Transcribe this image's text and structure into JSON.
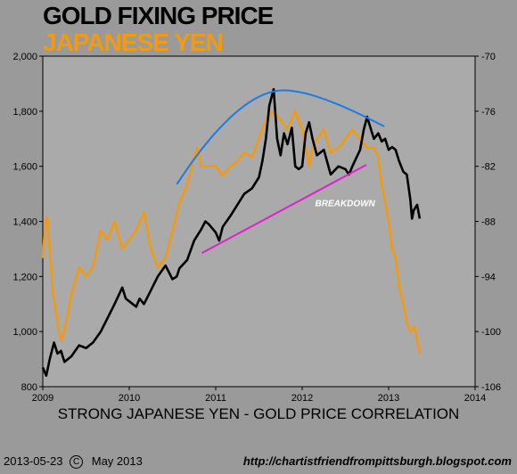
{
  "title": "GOLD FIXING PRICE",
  "subtitle": "JAPANESE YEN",
  "caption": "STRONG JAPANESE YEN - GOLD PRICE CORRELATION",
  "footer": {
    "date": "2013-05-23",
    "copyright_symbol": "C",
    "period": "May 2013",
    "url": "http://chartistfriendfrompittsburgh.blogspot.com"
  },
  "colors": {
    "background": "#9a9a9a",
    "plot_background": "#aaaaaa",
    "gold": "#000000",
    "yen": "#f29a11",
    "dome": "#1e7be3",
    "trendline": "#e020d0",
    "title": "#000000",
    "subtitle": "#f29a11"
  },
  "chart_data": {
    "type": "line",
    "x_axis": {
      "min": 2009,
      "max": 2014,
      "ticks": [
        2009,
        2010,
        2011,
        2012,
        2013,
        2014
      ]
    },
    "y_left": {
      "min": 800,
      "max": 2000,
      "ticks": [
        800,
        1000,
        1200,
        1400,
        1600,
        1800,
        2000
      ],
      "tick_labels": [
        "800",
        "1,000",
        "1,200",
        "1,400",
        "1,600",
        "1,800",
        "2,000"
      ]
    },
    "y_right": {
      "min": -106,
      "max": -70,
      "ticks": [
        -106,
        -100,
        -94,
        -88,
        -82,
        -76,
        -70
      ],
      "tick_labels": [
        "-106",
        "-100",
        "-94",
        "-88",
        "-82",
        "-76",
        "-70"
      ]
    },
    "grid": false,
    "series": [
      {
        "axis": "left",
        "color_key": "gold",
        "points": [
          [
            2009.0,
            870
          ],
          [
            2009.04,
            840
          ],
          [
            2009.08,
            900
          ],
          [
            2009.13,
            960
          ],
          [
            2009.17,
            920
          ],
          [
            2009.21,
            930
          ],
          [
            2009.25,
            890
          ],
          [
            2009.33,
            910
          ],
          [
            2009.42,
            950
          ],
          [
            2009.5,
            940
          ],
          [
            2009.58,
            960
          ],
          [
            2009.67,
            1000
          ],
          [
            2009.75,
            1050
          ],
          [
            2009.83,
            1100
          ],
          [
            2009.92,
            1160
          ],
          [
            2009.96,
            1120
          ],
          [
            2010.0,
            1110
          ],
          [
            2010.08,
            1090
          ],
          [
            2010.12,
            1120
          ],
          [
            2010.17,
            1100
          ],
          [
            2010.25,
            1150
          ],
          [
            2010.33,
            1200
          ],
          [
            2010.42,
            1240
          ],
          [
            2010.5,
            1190
          ],
          [
            2010.55,
            1200
          ],
          [
            2010.58,
            1230
          ],
          [
            2010.67,
            1260
          ],
          [
            2010.75,
            1330
          ],
          [
            2010.83,
            1370
          ],
          [
            2010.88,
            1400
          ],
          [
            2010.92,
            1390
          ],
          [
            2011.0,
            1360
          ],
          [
            2011.04,
            1330
          ],
          [
            2011.08,
            1380
          ],
          [
            2011.17,
            1420
          ],
          [
            2011.25,
            1460
          ],
          [
            2011.33,
            1500
          ],
          [
            2011.42,
            1520
          ],
          [
            2011.5,
            1560
          ],
          [
            2011.54,
            1620
          ],
          [
            2011.58,
            1700
          ],
          [
            2011.62,
            1820
          ],
          [
            2011.67,
            1880
          ],
          [
            2011.71,
            1700
          ],
          [
            2011.75,
            1640
          ],
          [
            2011.79,
            1720
          ],
          [
            2011.83,
            1680
          ],
          [
            2011.88,
            1740
          ],
          [
            2011.92,
            1600
          ],
          [
            2011.96,
            1590
          ],
          [
            2012.0,
            1600
          ],
          [
            2012.04,
            1720
          ],
          [
            2012.08,
            1760
          ],
          [
            2012.12,
            1700
          ],
          [
            2012.17,
            1640
          ],
          [
            2012.25,
            1660
          ],
          [
            2012.33,
            1570
          ],
          [
            2012.42,
            1600
          ],
          [
            2012.5,
            1590
          ],
          [
            2012.54,
            1570
          ],
          [
            2012.58,
            1600
          ],
          [
            2012.67,
            1660
          ],
          [
            2012.71,
            1730
          ],
          [
            2012.75,
            1780
          ],
          [
            2012.79,
            1740
          ],
          [
            2012.83,
            1700
          ],
          [
            2012.88,
            1720
          ],
          [
            2012.92,
            1690
          ],
          [
            2012.96,
            1700
          ],
          [
            2013.0,
            1660
          ],
          [
            2013.04,
            1670
          ],
          [
            2013.08,
            1660
          ],
          [
            2013.12,
            1620
          ],
          [
            2013.17,
            1580
          ],
          [
            2013.21,
            1570
          ],
          [
            2013.25,
            1480
          ],
          [
            2013.27,
            1410
          ],
          [
            2013.29,
            1440
          ],
          [
            2013.33,
            1460
          ],
          [
            2013.36,
            1410
          ]
        ]
      },
      {
        "axis": "right",
        "color_key": "yen",
        "points": [
          [
            2009.0,
            -92
          ],
          [
            2009.03,
            -88
          ],
          [
            2009.05,
            -87.5
          ],
          [
            2009.08,
            -91
          ],
          [
            2009.12,
            -96
          ],
          [
            2009.17,
            -99
          ],
          [
            2009.21,
            -101
          ],
          [
            2009.25,
            -100
          ],
          [
            2009.33,
            -96
          ],
          [
            2009.42,
            -93
          ],
          [
            2009.5,
            -94
          ],
          [
            2009.58,
            -93
          ],
          [
            2009.67,
            -89
          ],
          [
            2009.75,
            -90
          ],
          [
            2009.83,
            -88
          ],
          [
            2009.92,
            -91
          ],
          [
            2010.0,
            -90
          ],
          [
            2010.08,
            -89
          ],
          [
            2010.17,
            -87
          ],
          [
            2010.25,
            -91
          ],
          [
            2010.33,
            -93
          ],
          [
            2010.42,
            -92
          ],
          [
            2010.5,
            -89
          ],
          [
            2010.58,
            -86
          ],
          [
            2010.67,
            -84
          ],
          [
            2010.75,
            -81
          ],
          [
            2010.79,
            -80
          ],
          [
            2010.83,
            -82
          ],
          [
            2010.92,
            -82
          ],
          [
            2011.0,
            -82
          ],
          [
            2011.08,
            -83
          ],
          [
            2011.17,
            -82
          ],
          [
            2011.25,
            -81.5
          ],
          [
            2011.33,
            -80.5
          ],
          [
            2011.42,
            -81
          ],
          [
            2011.5,
            -79
          ],
          [
            2011.58,
            -77
          ],
          [
            2011.67,
            -76
          ],
          [
            2011.75,
            -77
          ],
          [
            2011.83,
            -78
          ],
          [
            2011.92,
            -76
          ],
          [
            2012.0,
            -78
          ],
          [
            2012.08,
            -82
          ],
          [
            2012.12,
            -80
          ],
          [
            2012.17,
            -79
          ],
          [
            2012.25,
            -78
          ],
          [
            2012.33,
            -80.5
          ],
          [
            2012.42,
            -80
          ],
          [
            2012.5,
            -79
          ],
          [
            2012.58,
            -78
          ],
          [
            2012.67,
            -79
          ],
          [
            2012.75,
            -80
          ],
          [
            2012.83,
            -80
          ],
          [
            2012.88,
            -81
          ],
          [
            2012.92,
            -84
          ],
          [
            2012.96,
            -86
          ],
          [
            2013.0,
            -88
          ],
          [
            2013.04,
            -91
          ],
          [
            2013.08,
            -92
          ],
          [
            2013.12,
            -95
          ],
          [
            2013.17,
            -97
          ],
          [
            2013.21,
            -99
          ],
          [
            2013.25,
            -100
          ],
          [
            2013.3,
            -99.5
          ],
          [
            2013.33,
            -101
          ],
          [
            2013.36,
            -102.5
          ]
        ]
      }
    ],
    "overlays": [
      {
        "kind": "curve",
        "axis": "left",
        "color_key": "dome",
        "points": [
          [
            2010.55,
            1535
          ],
          [
            2010.8,
            1650
          ],
          [
            2011.1,
            1760
          ],
          [
            2011.4,
            1840
          ],
          [
            2011.7,
            1880
          ],
          [
            2012.0,
            1870
          ],
          [
            2012.3,
            1840
          ],
          [
            2012.6,
            1800
          ],
          [
            2012.95,
            1745
          ]
        ]
      },
      {
        "kind": "line",
        "axis": "left",
        "color_key": "trendline",
        "points": [
          [
            2010.84,
            1285
          ],
          [
            2012.74,
            1605
          ]
        ]
      }
    ],
    "annotations": [
      {
        "text": "BREAKDOWN",
        "x": 2012.15,
        "y": 1455,
        "axis": "left"
      }
    ]
  }
}
